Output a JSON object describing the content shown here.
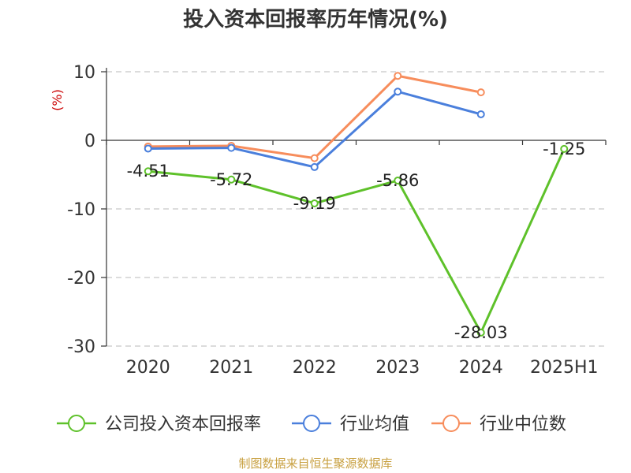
{
  "chart_data": {
    "type": "line",
    "title": "投入资本回报率历年情况(%)",
    "ylabel": "(%)",
    "xlabel": "",
    "categories": [
      "2020",
      "2021",
      "2022",
      "2023",
      "2024",
      "2025H1"
    ],
    "ylim": [
      -30,
      10
    ],
    "yticks": [
      10,
      0,
      -10,
      -20,
      -30
    ],
    "grid": true,
    "legend_position": "bottom",
    "series": [
      {
        "name": "公司投入资本回报率",
        "color": "#5ec12a",
        "values": [
          -4.51,
          -5.72,
          -9.19,
          -5.86,
          -28.03,
          -1.25
        ],
        "data_labels": [
          "-4.51",
          "-5.72",
          "-9.19",
          "-5.86",
          "-28.03",
          "-1.25"
        ]
      },
      {
        "name": "行业均值",
        "color": "#4a7fdc",
        "values": [
          -1.2,
          -1.1,
          -3.9,
          7.1,
          3.8,
          null
        ],
        "data_labels": []
      },
      {
        "name": "行业中位数",
        "color": "#f78d5c",
        "values": [
          -0.9,
          -0.8,
          -2.6,
          9.4,
          7.0,
          null
        ],
        "data_labels": []
      }
    ],
    "source": "制图数据来自恒生聚源数据库"
  }
}
